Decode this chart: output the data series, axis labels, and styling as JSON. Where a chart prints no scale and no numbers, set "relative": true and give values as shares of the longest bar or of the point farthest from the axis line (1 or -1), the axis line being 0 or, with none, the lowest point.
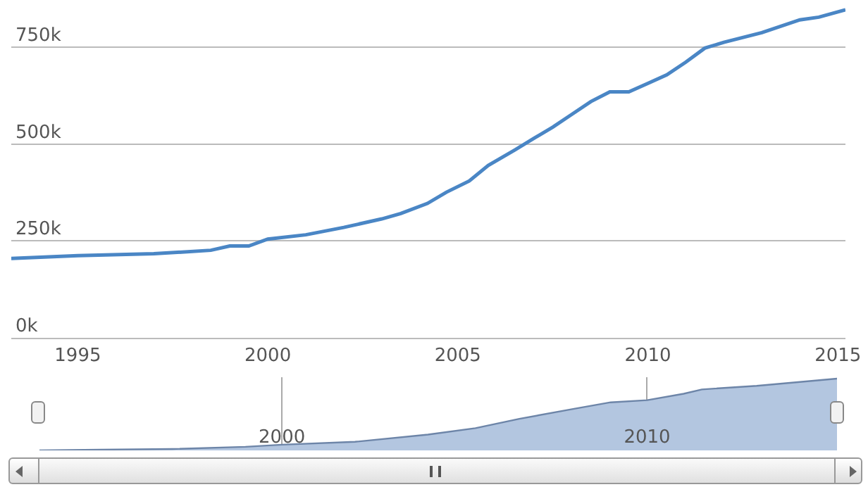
{
  "chart_data": [
    {
      "type": "line",
      "x": [
        1993.25,
        1995,
        1997,
        1998.5,
        1999,
        1999.5,
        2000,
        2001,
        2002,
        2003,
        2003.5,
        2004.2,
        2004.7,
        2005.3,
        2005.8,
        2006.5,
        2007,
        2007.5,
        2008,
        2008.5,
        2009,
        2009.5,
        2010,
        2010.5,
        2011,
        2011.5,
        2012,
        2013,
        2014,
        2014.5,
        2015.2
      ],
      "series": [
        {
          "color": "#4a86c5",
          "values": [
            205,
            212,
            217,
            226,
            237,
            237,
            255,
            266,
            285,
            307,
            321,
            347,
            376,
            405,
            445,
            485,
            515,
            544,
            577,
            610,
            635,
            635,
            657,
            679,
            712,
            748,
            763,
            788,
            821,
            828,
            847
          ]
        }
      ],
      "xlim": [
        1993.25,
        2015.2
      ],
      "xticks": [
        1995,
        2000,
        2005,
        2010,
        2015
      ],
      "ylim": [
        0,
        865
      ],
      "yticks": [
        {
          "value": 0,
          "label": "0k"
        },
        {
          "value": 250,
          "label": "250k"
        },
        {
          "value": 500,
          "label": "500k"
        },
        {
          "value": 750,
          "label": "750k"
        }
      ],
      "grid": "y",
      "legend": false,
      "marker": "none",
      "line_style": "solid"
    },
    {
      "type": "area",
      "relative": true,
      "x": [
        1993.36,
        1995,
        1997,
        1999,
        2000,
        2002,
        2004,
        2005.3,
        2006.5,
        2008,
        2009,
        2010,
        2011,
        2011.5,
        2013,
        2015.2
      ],
      "series": [
        {
          "color": "#b3c6e0",
          "values": [
            0,
            0.01,
            0.02,
            0.05,
            0.08,
            0.12,
            0.22,
            0.31,
            0.44,
            0.58,
            0.67,
            0.7,
            0.79,
            0.85,
            0.9,
            1
          ]
        }
      ],
      "xlim": [
        1993.36,
        2015.2
      ],
      "xticks": [
        2000,
        2010
      ],
      "grid": "x",
      "tick_labels": "x",
      "legend": false
    }
  ]
}
